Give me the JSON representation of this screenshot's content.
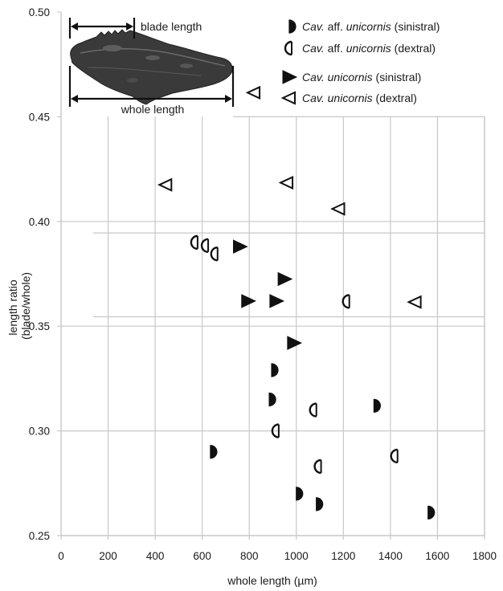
{
  "chart_data": {
    "type": "scatter",
    "xlabel": "whole length (µm)",
    "ylabel_lines": [
      "length ratio",
      "(blade/whole)"
    ],
    "xlim": [
      0,
      1800
    ],
    "ylim": [
      0.25,
      0.5
    ],
    "x_ticks": [
      "0",
      "200",
      "400",
      "600",
      "800",
      "1000",
      "1200",
      "1400",
      "1600",
      "1800"
    ],
    "y_ticks": [
      "0.25",
      "0.30",
      "0.35",
      "0.40",
      "0.45",
      "0.50"
    ],
    "grid": true,
    "legend_position": "top-right",
    "series": [
      {
        "name": "Cav. aff. unicornis (sinistral)",
        "label_parts": {
          "pre": "Cav.",
          "mid": " aff. ",
          "species": "unicornis",
          "post": " (sinistral)"
        },
        "marker": "half-circle-filled",
        "points": [
          [
            635,
            0.29
          ],
          [
            895,
            0.329
          ],
          [
            885,
            0.315
          ],
          [
            1330,
            0.312
          ],
          [
            1000,
            0.27
          ],
          [
            1085,
            0.265
          ],
          [
            1560,
            0.261
          ]
        ]
      },
      {
        "name": "Cav. aff. unicornis (dextral)",
        "label_parts": {
          "pre": "Cav.",
          "mid": " aff. ",
          "species": "unicornis",
          "post": " (dextral)"
        },
        "marker": "half-circle-open",
        "points": [
          [
            570,
            0.39
          ],
          [
            615,
            0.3885
          ],
          [
            655,
            0.3845
          ],
          [
            1215,
            0.3618
          ],
          [
            1075,
            0.31
          ],
          [
            915,
            0.3
          ],
          [
            1095,
            0.283
          ],
          [
            1420,
            0.288
          ]
        ]
      },
      {
        "name": "Cav. unicornis (sinistral)",
        "label_parts": {
          "pre": "Cav.",
          "mid": " ",
          "species": "unicornis",
          "post": " (sinistral)"
        },
        "marker": "triangle-filled",
        "points": [
          [
            760,
            0.388
          ],
          [
            950,
            0.3725
          ],
          [
            795,
            0.362
          ],
          [
            915,
            0.362
          ],
          [
            990,
            0.342
          ]
        ]
      },
      {
        "name": "Cav. unicornis (dextral)",
        "label_parts": {
          "pre": "Cav.",
          "mid": " ",
          "species": "unicornis",
          "post": " (dextral)"
        },
        "marker": "triangle-open",
        "points": [
          [
            820,
            0.4615
          ],
          [
            445,
            0.4175
          ],
          [
            960,
            0.4185
          ],
          [
            1180,
            0.406
          ],
          [
            1505,
            0.3615
          ]
        ]
      }
    ]
  },
  "inset": {
    "image": "conodont-element-photo",
    "label_blade": "blade length",
    "label_whole": "whole length"
  }
}
